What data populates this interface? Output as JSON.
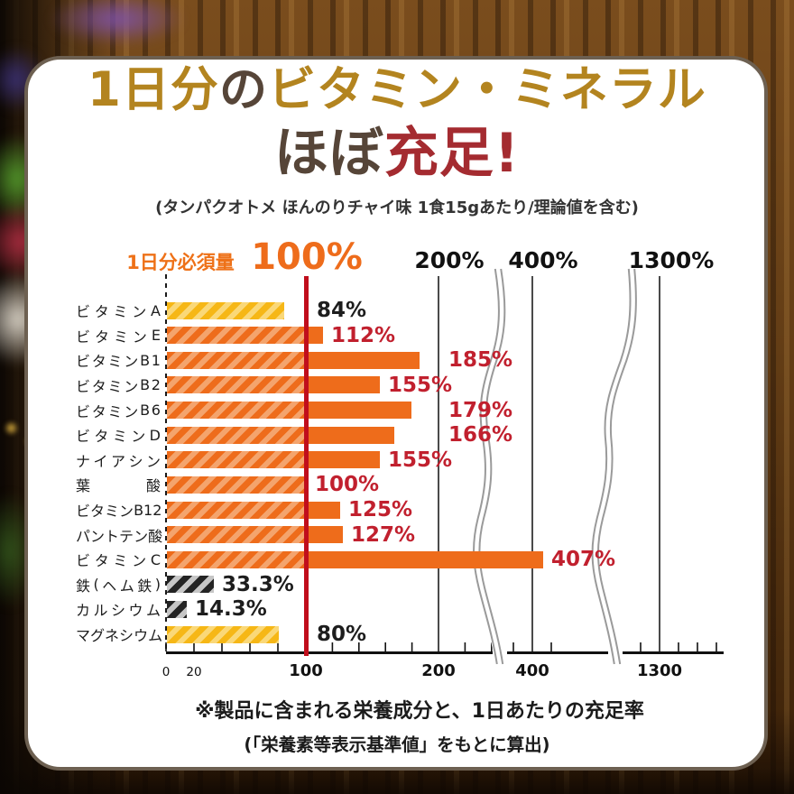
{
  "title": {
    "line1": [
      {
        "text": "1日分",
        "color": "gold"
      },
      {
        "text": "の",
        "color": "brown"
      },
      {
        "text": "ビタミン・ミネラル",
        "color": "gold"
      }
    ],
    "line2": [
      {
        "text": "ほぼ",
        "color": "brown"
      },
      {
        "text": "充足!",
        "color": "red"
      }
    ]
  },
  "subtitle": "(タンパクオトメ ほんのりチャイ味 1食15gあたり/理論値を含む)",
  "chart": {
    "requirement_label": "1日分必須量",
    "threshold_label": "100%",
    "upper_headers": [
      "200%",
      "400%",
      "1300%"
    ],
    "x_tick_labels": [
      "0",
      "20",
      "100",
      "200",
      "400",
      "1300"
    ]
  },
  "chart_data": {
    "type": "bar",
    "orientation": "horizontal",
    "title": "1日分のビタミン・ミネラル ほぼ充足!",
    "categories": [
      "ビタミンA",
      "ビタミンE",
      "ビタミンB1",
      "ビタミンB2",
      "ビタミンB6",
      "ビタミンD",
      "ナイアシン",
      "葉酸",
      "ビタミンB12",
      "パントテン酸",
      "ビタミンC",
      "鉄(ヘム鉄)",
      "カルシウム",
      "マグネシウム"
    ],
    "values": [
      84,
      112,
      185,
      155,
      179,
      166,
      155,
      100,
      125,
      127,
      407,
      33.3,
      14.3,
      80
    ],
    "value_labels": [
      "84%",
      "112%",
      "185%",
      "155%",
      "179%",
      "166%",
      "155%",
      "100%",
      "125%",
      "127%",
      "407%",
      "33.3%",
      "14.3%",
      "80%"
    ],
    "bar_colors": [
      "yellow",
      "orange",
      "orange",
      "orange",
      "orange",
      "orange",
      "orange",
      "orange",
      "orange",
      "orange",
      "orange",
      "black",
      "black",
      "yellow"
    ],
    "unit": "%",
    "reference_line": 100,
    "x_axis_ticks": [
      0,
      20,
      100,
      200,
      400,
      1300
    ],
    "has_scale_breaks": true,
    "legend": "none",
    "grid": "vertical-lines-at-200-400-1300"
  },
  "footnote": {
    "line1": "※製品に含まれる栄養成分と、1日あたりの充足率",
    "line2": "(「栄養素等表示基準値」をもとに算出)"
  },
  "colors": {
    "title_gold": "#B3841F",
    "title_brown": "#564538",
    "title_red": "#A42B30",
    "accent_orange": "#EE7118",
    "value_red": "#C1202E",
    "value_black": "#1D1D1D",
    "reference_red": "#C00E1C",
    "orange_solid": "#EE6C1B",
    "orange_light": "#F4A46D",
    "yellow_solid": "#F6B716",
    "yellow_light": "#FAD878",
    "black_solid": "#242424",
    "black_light": "#C6C6C6",
    "gridline": "#4A4A4A"
  }
}
